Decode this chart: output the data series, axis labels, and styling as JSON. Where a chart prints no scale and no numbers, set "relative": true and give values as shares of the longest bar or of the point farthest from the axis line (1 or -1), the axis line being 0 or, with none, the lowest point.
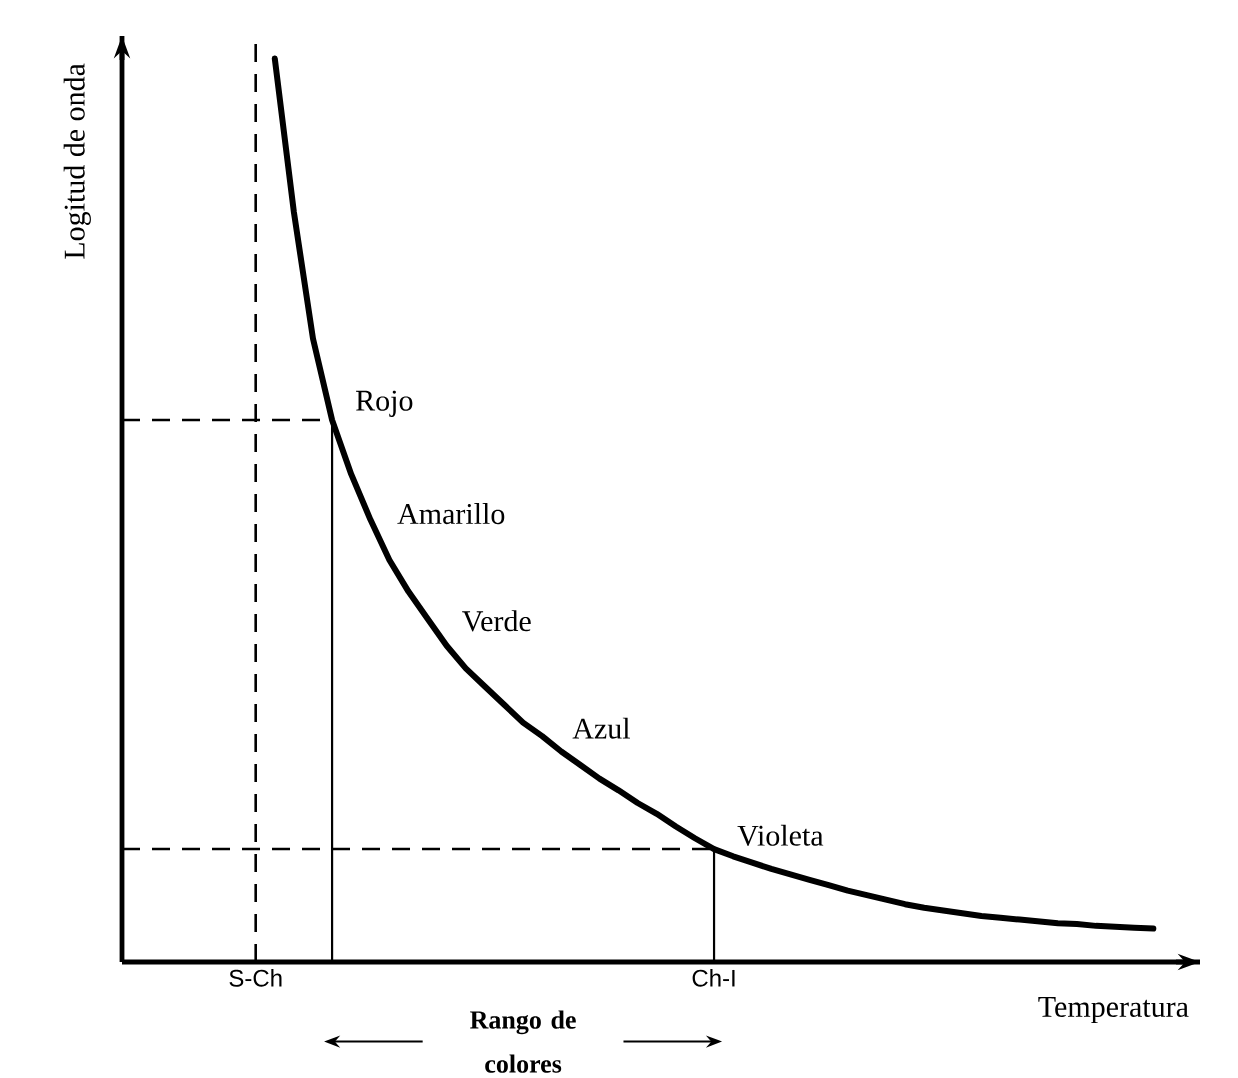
{
  "chart_data": {
    "type": "line",
    "relative": true,
    "xlabel": "Temperatura",
    "ylabel": "Logitud de onda",
    "categories": [
      "S-Ch",
      null,
      null,
      null,
      null,
      null,
      null,
      null,
      null,
      null,
      null,
      null,
      null,
      null,
      null,
      null,
      null,
      null,
      null,
      null,
      null,
      null,
      null,
      null,
      "Ch-I",
      null,
      null,
      null,
      null,
      null,
      null,
      null,
      null,
      null,
      null,
      null,
      null,
      null,
      null,
      null,
      null,
      null,
      null,
      null,
      null,
      null,
      null,
      null
    ],
    "line_style": "solid",
    "marker": "none",
    "series": [
      {
        "color": "#000000",
        "values": [
          null,
          1.0,
          0.83,
          0.69,
          0.6,
          0.54,
          0.49,
          0.445,
          0.41,
          0.38,
          0.35,
          0.325,
          0.305,
          0.285,
          0.265,
          0.25,
          0.233,
          0.218,
          0.203,
          0.19,
          0.176,
          0.164,
          0.15,
          0.137,
          0.125,
          0.117,
          0.11,
          0.103,
          0.097,
          0.091,
          0.085,
          0.079,
          0.074,
          0.069,
          0.064,
          0.06,
          0.057,
          0.054,
          0.051,
          0.049,
          0.047,
          0.045,
          0.043,
          0.042,
          0.04,
          0.039,
          0.038,
          0.037
        ]
      }
    ],
    "ref_lines": [
      {
        "axis": "x",
        "value": "S-Ch",
        "line_style": "dashed"
      },
      {
        "axis": "y",
        "value": 0.6,
        "line_style": "dashed"
      },
      {
        "axis": "y",
        "value": 0.125,
        "line_style": "dashed"
      }
    ],
    "annotations": [
      "Rojo",
      "Amarillo",
      "Verde",
      "Azul",
      "Violeta",
      "Rango de colores"
    ]
  }
}
